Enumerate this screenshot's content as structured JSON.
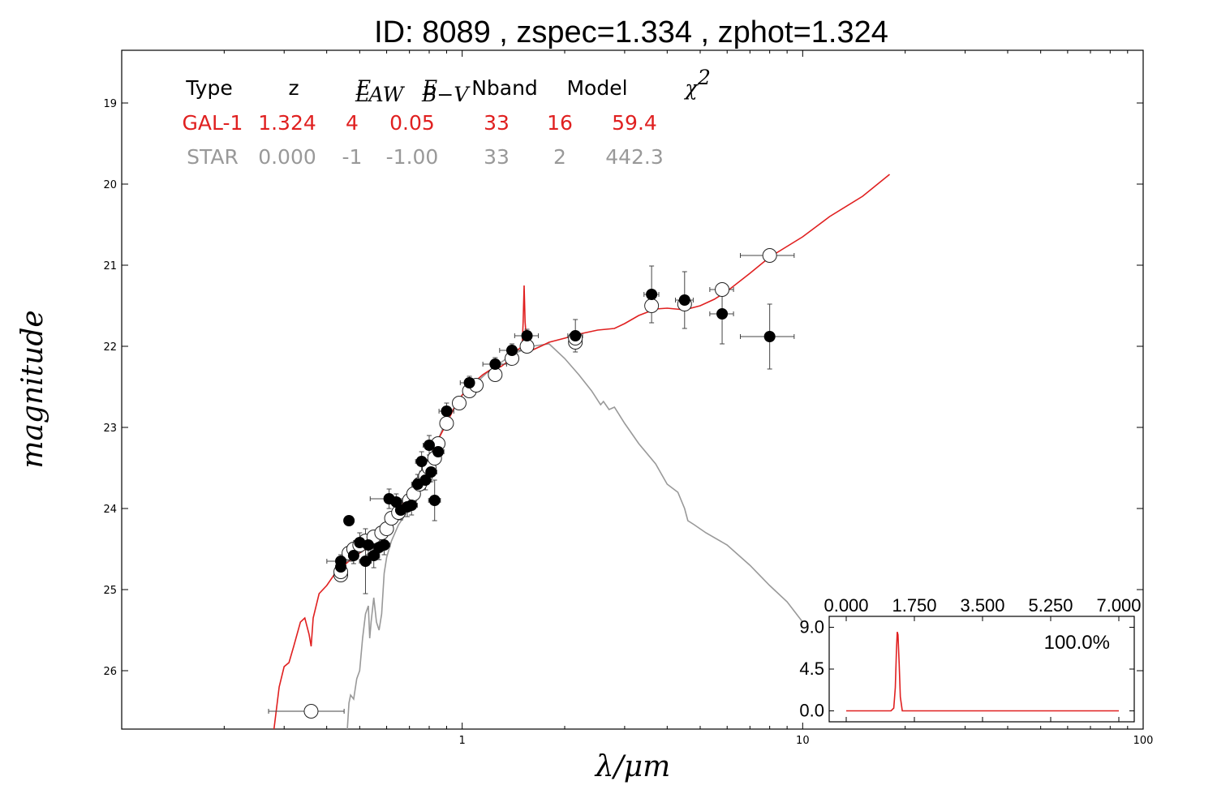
{
  "chart_data": {
    "type": "scatter",
    "title": "ID:  8089  , zspec=1.334 , zphot=1.324",
    "xlabel": "λ/μm",
    "ylabel": "magnitude",
    "x_scale": "log",
    "xlim": [
      0.1,
      100
    ],
    "ylim": [
      26.72,
      18.35
    ],
    "x_ticks": [
      "1",
      "10",
      "100"
    ],
    "y_ticks": [
      "19",
      "20",
      "21",
      "22",
      "23",
      "24",
      "25",
      "26"
    ],
    "colors": {
      "galaxy": "#e02020",
      "star": "#999999",
      "data": "#000000"
    },
    "fit_table": {
      "headers": [
        "Type",
        "z",
        "E",
        "E",
        "Nband",
        "Model",
        "χ"
      ],
      "header_subscripts": [
        "LAW",
        "B−V"
      ],
      "chi_superscript": "2",
      "rows": [
        {
          "cells": [
            "GAL-1",
            "1.324",
            "4",
            "0.05",
            "33",
            "16",
            "59.4"
          ],
          "color": "#e02020"
        },
        {
          "cells": [
            "STAR",
            "0.000",
            "-1",
            "-1.00",
            "33",
            "2",
            "442.3"
          ],
          "color": "#999999"
        }
      ]
    },
    "galaxy_model": [
      [
        0.28,
        26.72
      ],
      [
        0.29,
        26.2
      ],
      [
        0.3,
        25.95
      ],
      [
        0.31,
        25.9
      ],
      [
        0.32,
        25.7
      ],
      [
        0.335,
        25.4
      ],
      [
        0.345,
        25.35
      ],
      [
        0.355,
        25.55
      ],
      [
        0.36,
        25.7
      ],
      [
        0.365,
        25.35
      ],
      [
        0.38,
        25.05
      ],
      [
        0.4,
        24.95
      ],
      [
        0.42,
        24.82
      ],
      [
        0.45,
        24.7
      ],
      [
        0.48,
        24.6
      ],
      [
        0.52,
        24.5
      ],
      [
        0.56,
        24.4
      ],
      [
        0.6,
        24.2
      ],
      [
        0.65,
        24.0
      ],
      [
        0.7,
        23.85
      ],
      [
        0.75,
        23.6
      ],
      [
        0.8,
        23.4
      ],
      [
        0.85,
        23.15
      ],
      [
        0.9,
        22.95
      ],
      [
        0.95,
        22.75
      ],
      [
        1.0,
        22.6
      ],
      [
        1.05,
        22.5
      ],
      [
        1.1,
        22.42
      ],
      [
        1.15,
        22.35
      ],
      [
        1.2,
        22.3
      ],
      [
        1.3,
        22.25
      ],
      [
        1.4,
        22.15
      ],
      [
        1.45,
        22.05
      ],
      [
        1.5,
        22.0
      ],
      [
        1.51,
        21.7
      ],
      [
        1.52,
        21.25
      ],
      [
        1.53,
        21.7
      ],
      [
        1.55,
        22.0
      ],
      [
        1.6,
        22.05
      ],
      [
        1.7,
        22.0
      ],
      [
        1.8,
        21.95
      ],
      [
        2.0,
        21.9
      ],
      [
        2.2,
        21.85
      ],
      [
        2.5,
        21.8
      ],
      [
        2.8,
        21.78
      ],
      [
        3.0,
        21.72
      ],
      [
        3.3,
        21.62
      ],
      [
        3.7,
        21.54
      ],
      [
        4.0,
        21.53
      ],
      [
        4.5,
        21.55
      ],
      [
        5.0,
        21.5
      ],
      [
        5.5,
        21.42
      ],
      [
        6.0,
        21.32
      ],
      [
        7.0,
        21.1
      ],
      [
        8.0,
        20.9
      ],
      [
        10.0,
        20.65
      ],
      [
        12.0,
        20.4
      ],
      [
        15.0,
        20.15
      ],
      [
        18.0,
        19.88
      ]
    ],
    "star_model": [
      [
        0.46,
        26.72
      ],
      [
        0.465,
        26.4
      ],
      [
        0.47,
        26.3
      ],
      [
        0.48,
        26.35
      ],
      [
        0.49,
        26.1
      ],
      [
        0.5,
        26.0
      ],
      [
        0.51,
        25.6
      ],
      [
        0.52,
        25.3
      ],
      [
        0.53,
        25.2
      ],
      [
        0.535,
        25.6
      ],
      [
        0.54,
        25.4
      ],
      [
        0.55,
        25.1
      ],
      [
        0.56,
        25.4
      ],
      [
        0.57,
        25.5
      ],
      [
        0.58,
        25.3
      ],
      [
        0.59,
        24.8
      ],
      [
        0.6,
        24.6
      ],
      [
        0.62,
        24.4
      ],
      [
        0.65,
        24.2
      ],
      [
        0.7,
        24.0
      ],
      [
        0.75,
        23.75
      ],
      [
        0.8,
        23.5
      ],
      [
        0.85,
        23.15
      ],
      [
        0.9,
        22.9
      ],
      [
        0.95,
        22.75
      ],
      [
        1.0,
        22.6
      ],
      [
        1.1,
        22.45
      ],
      [
        1.2,
        22.3
      ],
      [
        1.3,
        22.2
      ],
      [
        1.4,
        22.1
      ],
      [
        1.5,
        22.05
      ],
      [
        1.6,
        22.0
      ],
      [
        1.8,
        21.97
      ],
      [
        2.0,
        22.15
      ],
      [
        2.2,
        22.35
      ],
      [
        2.4,
        22.55
      ],
      [
        2.55,
        22.72
      ],
      [
        2.6,
        22.68
      ],
      [
        2.7,
        22.78
      ],
      [
        2.8,
        22.75
      ],
      [
        3.0,
        22.95
      ],
      [
        3.3,
        23.2
      ],
      [
        3.7,
        23.45
      ],
      [
        4.0,
        23.7
      ],
      [
        4.3,
        23.8
      ],
      [
        4.5,
        24.0
      ],
      [
        4.6,
        24.15
      ],
      [
        4.8,
        24.2
      ],
      [
        5.2,
        24.3
      ],
      [
        6.0,
        24.45
      ],
      [
        7.0,
        24.7
      ],
      [
        8.0,
        24.95
      ],
      [
        9.0,
        25.15
      ],
      [
        10.0,
        25.4
      ]
    ],
    "model_mags": [
      [
        0.36,
        26.5,
        0.03
      ],
      [
        0.44,
        24.82,
        0.05
      ],
      [
        0.44,
        24.78,
        0.05
      ],
      [
        0.465,
        24.55,
        0.05
      ],
      [
        0.48,
        24.5,
        0.05
      ],
      [
        0.5,
        24.45,
        0.05
      ],
      [
        0.52,
        24.4,
        0.05
      ],
      [
        0.55,
        24.35,
        0.05
      ],
      [
        0.58,
        24.3,
        0.05
      ],
      [
        0.6,
        24.25,
        0.05
      ],
      [
        0.62,
        24.12,
        0.05
      ],
      [
        0.65,
        24.05,
        0.05
      ],
      [
        0.7,
        23.9,
        0.05
      ],
      [
        0.72,
        23.82,
        0.05
      ],
      [
        0.75,
        23.7,
        0.05
      ],
      [
        0.78,
        23.6,
        0.05
      ],
      [
        0.8,
        23.5,
        0.05
      ],
      [
        0.83,
        23.38,
        0.05
      ],
      [
        0.85,
        23.2,
        0.05
      ],
      [
        0.9,
        22.95,
        0.06
      ],
      [
        0.98,
        22.7,
        0.06
      ],
      [
        1.05,
        22.55,
        0.06
      ],
      [
        1.1,
        22.48,
        0.06
      ],
      [
        1.25,
        22.35,
        0.06
      ],
      [
        1.4,
        22.15,
        0.06
      ],
      [
        1.55,
        22.0,
        0.06
      ],
      [
        2.15,
        21.95,
        0.06
      ],
      [
        2.15,
        21.9,
        0.06
      ],
      [
        3.6,
        21.5,
        0.06
      ],
      [
        4.5,
        21.48,
        0.06
      ],
      [
        5.8,
        21.3,
        0.06
      ],
      [
        8.0,
        20.88,
        0.06
      ]
    ],
    "observed": [
      [
        0.44,
        24.65,
        0.08
      ],
      [
        0.44,
        24.72,
        0.1
      ],
      [
        0.465,
        24.15,
        0.05
      ],
      [
        0.48,
        24.58,
        0.1
      ],
      [
        0.5,
        24.42,
        0.12
      ],
      [
        0.52,
        24.65,
        0.4
      ],
      [
        0.53,
        24.45,
        0.12
      ],
      [
        0.55,
        24.58,
        0.15
      ],
      [
        0.57,
        24.48,
        0.15
      ],
      [
        0.59,
        24.45,
        0.12
      ],
      [
        0.61,
        23.88,
        0.12
      ],
      [
        0.64,
        23.92,
        0.1
      ],
      [
        0.66,
        24.02,
        0.12
      ],
      [
        0.69,
        23.98,
        0.12
      ],
      [
        0.71,
        23.96,
        0.12
      ],
      [
        0.74,
        23.7,
        0.12
      ],
      [
        0.76,
        23.42,
        0.12
      ],
      [
        0.78,
        23.65,
        0.12
      ],
      [
        0.8,
        23.22,
        0.12
      ],
      [
        0.81,
        23.55,
        0.12
      ],
      [
        0.83,
        23.9,
        0.25
      ],
      [
        0.85,
        23.3,
        0.12
      ],
      [
        0.9,
        22.8,
        0.1
      ],
      [
        1.05,
        22.45,
        0.08
      ],
      [
        1.25,
        22.22,
        0.08
      ],
      [
        1.4,
        22.05,
        0.08
      ],
      [
        1.55,
        21.87,
        0.08
      ],
      [
        2.15,
        21.87,
        0.2
      ],
      [
        3.6,
        21.36,
        0.35
      ],
      [
        4.5,
        21.43,
        0.35
      ],
      [
        5.8,
        21.6,
        0.37
      ],
      [
        8.0,
        21.88,
        0.4
      ]
    ],
    "x_err_frac": [
      0.09,
      0.03,
      0.03,
      0.03,
      0.04,
      0.04,
      0.04,
      0.04,
      0.04,
      0.04,
      0.12,
      0.04,
      0.04,
      0.04,
      0.04,
      0.04,
      0.04,
      0.04,
      0.04,
      0.04,
      0.04,
      0.04,
      0.05,
      0.06,
      0.08,
      0.08,
      0.08,
      0.05,
      0.05,
      0.06,
      0.08,
      0.18
    ],
    "inset": {
      "type": "line",
      "x_ticks": [
        "0.000",
        "1.750",
        "3.500",
        "5.250",
        "7.000"
      ],
      "y_ticks": [
        "9.0",
        "4.5",
        "0.0"
      ],
      "xlim": [
        0,
        7
      ],
      "ylim": [
        -1,
        10
      ],
      "label": "100.0%",
      "pdz": [
        [
          0.0,
          0.0
        ],
        [
          1.15,
          0.0
        ],
        [
          1.22,
          0.3
        ],
        [
          1.26,
          2.5
        ],
        [
          1.29,
          6.5
        ],
        [
          1.31,
          8.5
        ],
        [
          1.33,
          8.2
        ],
        [
          1.36,
          5.0
        ],
        [
          1.39,
          1.5
        ],
        [
          1.44,
          0.0
        ],
        [
          7.0,
          0.0
        ]
      ]
    }
  }
}
